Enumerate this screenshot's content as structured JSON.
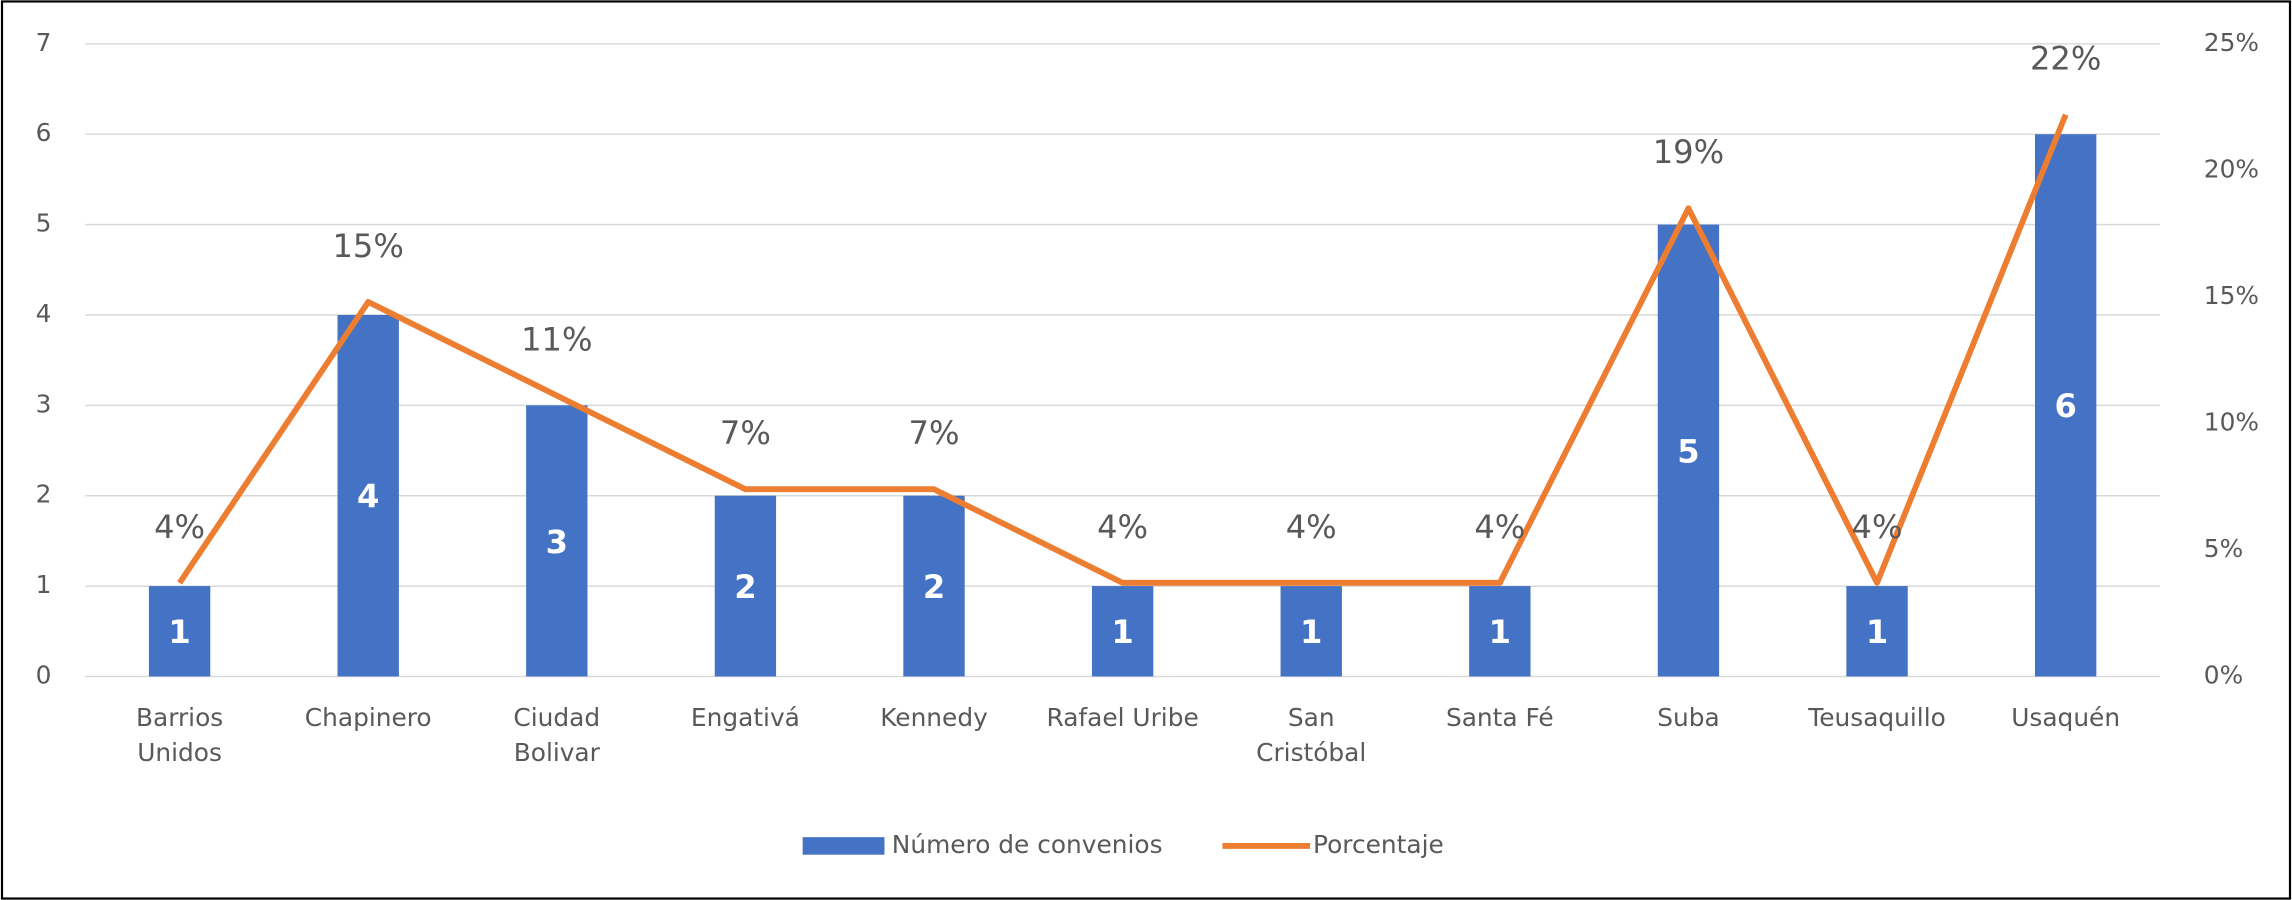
{
  "chart_data": {
    "type": "bar_line",
    "categories": [
      "Barrios\nUnidos",
      "Chapinero",
      "Ciudad\nBolivar",
      "Engativá",
      "Kennedy",
      "Rafael Uribe",
      "San\nCristóbal",
      "Santa Fé",
      "Suba",
      "Teusaquillo",
      "Usaquén"
    ],
    "series": [
      {
        "name": "Número de convenios",
        "color": "#4472c4",
        "type": "bar",
        "values": [
          1,
          4,
          3,
          2,
          2,
          1,
          1,
          1,
          5,
          1,
          6
        ]
      },
      {
        "name": "Porcentaje",
        "color": "#ed7d31",
        "type": "line",
        "axis": "y2",
        "values": [
          3.7,
          14.8,
          11.1,
          7.4,
          7.4,
          3.7,
          3.7,
          3.7,
          18.5,
          3.7,
          22.2
        ],
        "value_labels": [
          "4%",
          "15%",
          "11%",
          "7%",
          "7%",
          "4%",
          "4%",
          "4%",
          "19%",
          "4%",
          "22%"
        ]
      }
    ],
    "ylim": [
      0,
      7
    ],
    "yticks": [
      0,
      1,
      2,
      3,
      4,
      5,
      6,
      7
    ],
    "y2lim": [
      0,
      25
    ],
    "y2ticks": [
      {
        "value": 0,
        "label": "0%"
      },
      {
        "value": 5,
        "label": "5%"
      },
      {
        "value": 10,
        "label": "10%"
      },
      {
        "value": 15,
        "label": "15%"
      },
      {
        "value": 20,
        "label": "20%"
      },
      {
        "value": 25,
        "label": "25%"
      }
    ],
    "grid": true,
    "legend": "bottom"
  }
}
